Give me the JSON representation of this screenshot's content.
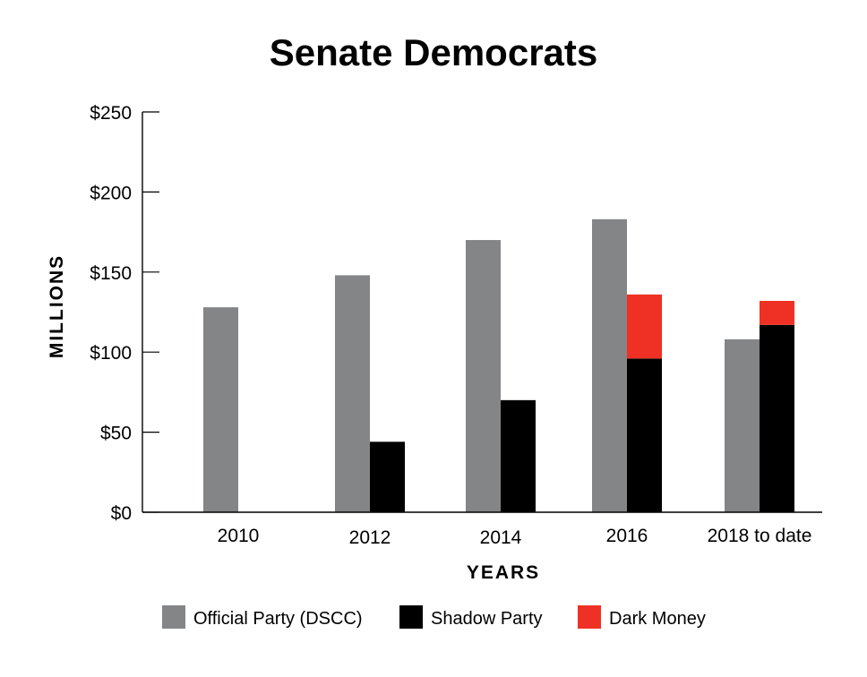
{
  "chart_data": {
    "type": "bar",
    "title": "Senate Democrats",
    "xlabel": "YEARS",
    "ylabel": "MILLIONS",
    "categories": [
      "2010",
      "2012",
      "2014",
      "2016",
      "2018 to date"
    ],
    "ylim": [
      0,
      250
    ],
    "yticks": [
      0,
      50,
      100,
      150,
      200,
      250
    ],
    "ytick_labels": [
      "$0",
      "$50",
      "$100",
      "$150",
      "$200",
      "$250"
    ],
    "grid": false,
    "legend_position": "bottom",
    "series": [
      {
        "name": "Official Party (DSCC)",
        "values": [
          128,
          148,
          170,
          183,
          108
        ],
        "color": "#848587",
        "stack": "a"
      },
      {
        "name": "Shadow Party",
        "values": [
          0,
          44,
          70,
          96,
          117
        ],
        "color": "#000000",
        "stack": "b"
      },
      {
        "name": "Dark Money",
        "values": [
          0,
          0,
          0,
          40,
          15
        ],
        "color": "#ee3124",
        "stack": "b"
      }
    ]
  }
}
